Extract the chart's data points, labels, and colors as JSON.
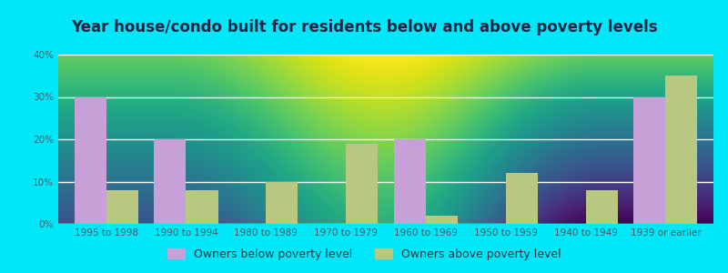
{
  "title": "Year house/condo built for residents below and above poverty levels",
  "categories": [
    "1995 to 1998",
    "1990 to 1994",
    "1980 to 1989",
    "1970 to 1979",
    "1960 to 1969",
    "1950 to 1959",
    "1940 to 1949",
    "1939 or earlier"
  ],
  "below_poverty": [
    30,
    20,
    0,
    0,
    20,
    0,
    0,
    30
  ],
  "above_poverty": [
    8,
    8,
    10,
    19,
    2,
    12,
    8,
    35
  ],
  "below_color": "#c8a0d8",
  "above_color": "#b8c880",
  "ylim": [
    0,
    40
  ],
  "yticks": [
    0,
    10,
    20,
    30,
    40
  ],
  "ytick_labels": [
    "0%",
    "10%",
    "20%",
    "30%",
    "40%"
  ],
  "bg_top_color": "#f0fff0",
  "bg_bottom_color": "#d0e8c0",
  "outer_background": "#00e8f8",
  "grid_color": "#ffffff",
  "legend_below": "Owners below poverty level",
  "legend_above": "Owners above poverty level",
  "bar_width": 0.4,
  "title_fontsize": 12,
  "tick_fontsize": 7.5,
  "legend_fontsize": 9
}
